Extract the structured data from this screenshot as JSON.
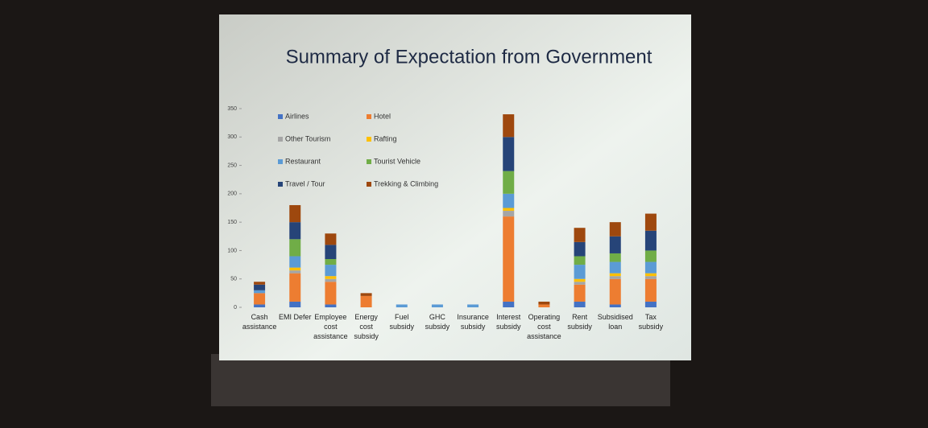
{
  "chart_data": {
    "type": "stacked_bar",
    "title": "Summary of Expectation from Government",
    "categories": [
      "Cash assistance",
      "EMI Defer",
      "Employee cost assistance",
      "Energy cost subsidy",
      "Fuel subsidy",
      "GHC subsidy",
      "Insurance subsidy",
      "Interest subsidy",
      "Operating cost assistance",
      "Rent subsidy",
      "Subsidised loan",
      "Tax subsidy"
    ],
    "series": [
      {
        "name": "Airlines",
        "color": "#4472c4",
        "values": [
          5,
          10,
          5,
          0,
          0,
          0,
          0,
          10,
          0,
          10,
          5,
          10
        ]
      },
      {
        "name": "Hotel",
        "color": "#ed7d31",
        "values": [
          20,
          50,
          40,
          20,
          0,
          0,
          0,
          150,
          5,
          30,
          45,
          40
        ]
      },
      {
        "name": "Other Tourism",
        "color": "#a5a5a5",
        "values": [
          0,
          5,
          5,
          0,
          0,
          0,
          0,
          10,
          0,
          5,
          5,
          5
        ]
      },
      {
        "name": "Rafting",
        "color": "#ffc000",
        "values": [
          0,
          5,
          5,
          0,
          0,
          0,
          0,
          5,
          0,
          5,
          5,
          5
        ]
      },
      {
        "name": "Restaurant",
        "color": "#5b9bd5",
        "values": [
          5,
          20,
          20,
          0,
          5,
          5,
          5,
          25,
          0,
          25,
          20,
          20
        ]
      },
      {
        "name": "Tourist Vehicle",
        "color": "#70ad47",
        "values": [
          0,
          30,
          10,
          0,
          0,
          0,
          0,
          40,
          0,
          15,
          15,
          20
        ]
      },
      {
        "name": "Travel / Tour",
        "color": "#264478",
        "values": [
          10,
          30,
          25,
          0,
          0,
          0,
          0,
          60,
          0,
          25,
          30,
          35
        ]
      },
      {
        "name": "Trekking & Climbing",
        "color": "#9e480e",
        "values": [
          5,
          30,
          20,
          5,
          0,
          0,
          0,
          40,
          5,
          25,
          25,
          30
        ]
      }
    ],
    "ylim": [
      0,
      350
    ],
    "yticks": [
      0,
      50,
      100,
      150,
      200,
      250,
      300,
      350
    ]
  }
}
